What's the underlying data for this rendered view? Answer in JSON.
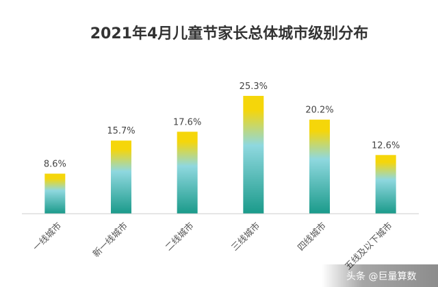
{
  "chart_data": {
    "type": "bar",
    "title": "2021年4月儿童节家长总体城市级别分布",
    "categories": [
      "一线城市",
      "新一线城市",
      "二线城市",
      "三线城市",
      "四线城市",
      "五线及以下城市"
    ],
    "values": [
      8.6,
      15.7,
      17.6,
      25.3,
      20.2,
      12.6
    ],
    "value_labels": [
      "8.6%",
      "15.7%",
      "17.6%",
      "25.3%",
      "20.2%",
      "12.6%"
    ],
    "xlabel": "",
    "ylabel": "",
    "ylim": [
      0,
      28
    ],
    "grid": false,
    "legend": "none",
    "colors": {
      "top": "#f5d60a",
      "middle": "#8fd8df",
      "bottom": "#1a9a8a",
      "axis": "#cccccc"
    }
  },
  "watermark": {
    "text": "头条 @巨量算数"
  }
}
